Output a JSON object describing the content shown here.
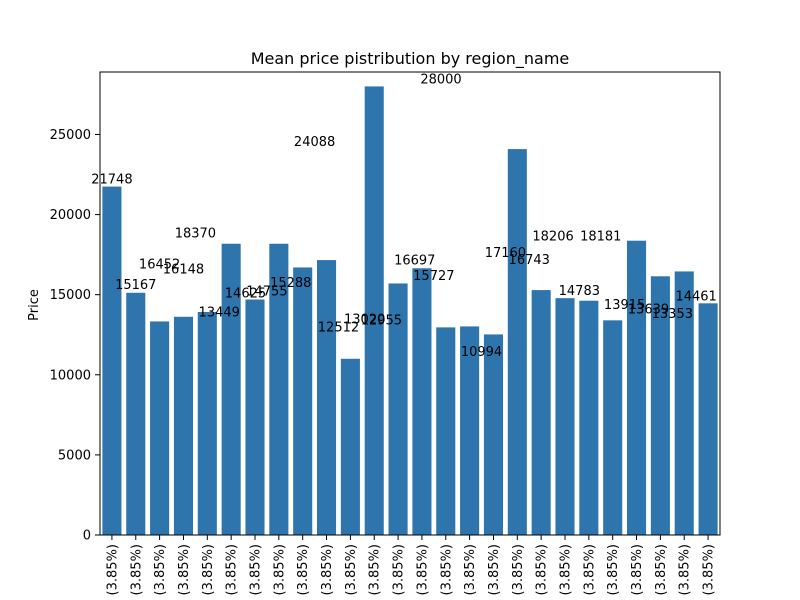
{
  "chart_data": {
    "type": "bar",
    "title": "Mean price pistribution by region_name",
    "xlabel": "",
    "ylabel": "Price",
    "ylim": [
      0,
      28900
    ],
    "yticks": [
      0,
      5000,
      10000,
      15000,
      20000,
      25000
    ],
    "ytick_labels": [
      "0",
      "5000",
      "10000",
      "15000",
      "20000",
      "25000"
    ],
    "grid": false,
    "legend": "none",
    "bar_color": "#2e75ad",
    "categories": [
      "(3.85%)",
      "(3.85%)",
      "(3.85%)",
      "(3.85%)",
      "(3.85%)",
      "(3.85%)",
      "(3.85%)",
      "(3.85%)",
      "(3.85%)",
      "(3.85%)",
      "(3.85%)",
      "(3.85%)",
      "(3.85%)",
      "(3.85%)",
      "(3.85%)",
      "(3.85%)",
      "(3.85%)",
      "(3.85%)",
      "(3.85%)",
      "(3.85%)",
      "(3.85%)",
      "(3.85%)",
      "(3.85%)",
      "(3.85%)",
      "(3.85%)",
      "(3.85%)"
    ],
    "values": [
      21748,
      15120,
      13330,
      13620,
      13920,
      18180,
      14700,
      18180,
      16700,
      17160,
      11000,
      28000,
      15700,
      16650,
      12960,
      13020,
      12520,
      24088,
      15288,
      14783,
      14625,
      13400,
      18370,
      16148,
      16452,
      14461
    ],
    "labels": [
      {
        "text": "21748",
        "x": 0.5,
        "y": 21748
      },
      {
        "text": "15167",
        "x": 1.5,
        "y": 15167
      },
      {
        "text": "16452",
        "x": 2.5,
        "y": 16452
      },
      {
        "text": "16148",
        "x": 3.5,
        "y": 16148
      },
      {
        "text": "13449",
        "x": 5.0,
        "y": 13449
      },
      {
        "text": "18370",
        "x": 4.0,
        "y": 18370
      },
      {
        "text": "14625",
        "x": 6.1,
        "y": 14625
      },
      {
        "text": "14755",
        "x": 7.0,
        "y": 14755
      },
      {
        "text": "15288",
        "x": 8.0,
        "y": 15288
      },
      {
        "text": "24088",
        "x": 9.0,
        "y": 24088
      },
      {
        "text": "12512",
        "x": 10.0,
        "y": 12512
      },
      {
        "text": "28000",
        "x": 14.3,
        "y": 28000
      },
      {
        "text": "13020",
        "x": 11.1,
        "y": 13020
      },
      {
        "text": "12955",
        "x": 11.8,
        "y": 12955
      },
      {
        "text": "16697",
        "x": 13.2,
        "y": 16697
      },
      {
        "text": "15727",
        "x": 14.0,
        "y": 15727
      },
      {
        "text": "10994",
        "x": 16.0,
        "y": 10994
      },
      {
        "text": "17160",
        "x": 17.0,
        "y": 17160
      },
      {
        "text": "16743",
        "x": 18.0,
        "y": 16743
      },
      {
        "text": "18206",
        "x": 19.0,
        "y": 18206
      },
      {
        "text": "14783",
        "x": 20.1,
        "y": 14783
      },
      {
        "text": "18181",
        "x": 21.0,
        "y": 18181
      },
      {
        "text": "13915",
        "x": 22.0,
        "y": 13915
      },
      {
        "text": "13639",
        "x": 23.0,
        "y": 13639
      },
      {
        "text": "13353",
        "x": 24.0,
        "y": 13353
      },
      {
        "text": "14461",
        "x": 25.0,
        "y": 14461
      }
    ]
  }
}
